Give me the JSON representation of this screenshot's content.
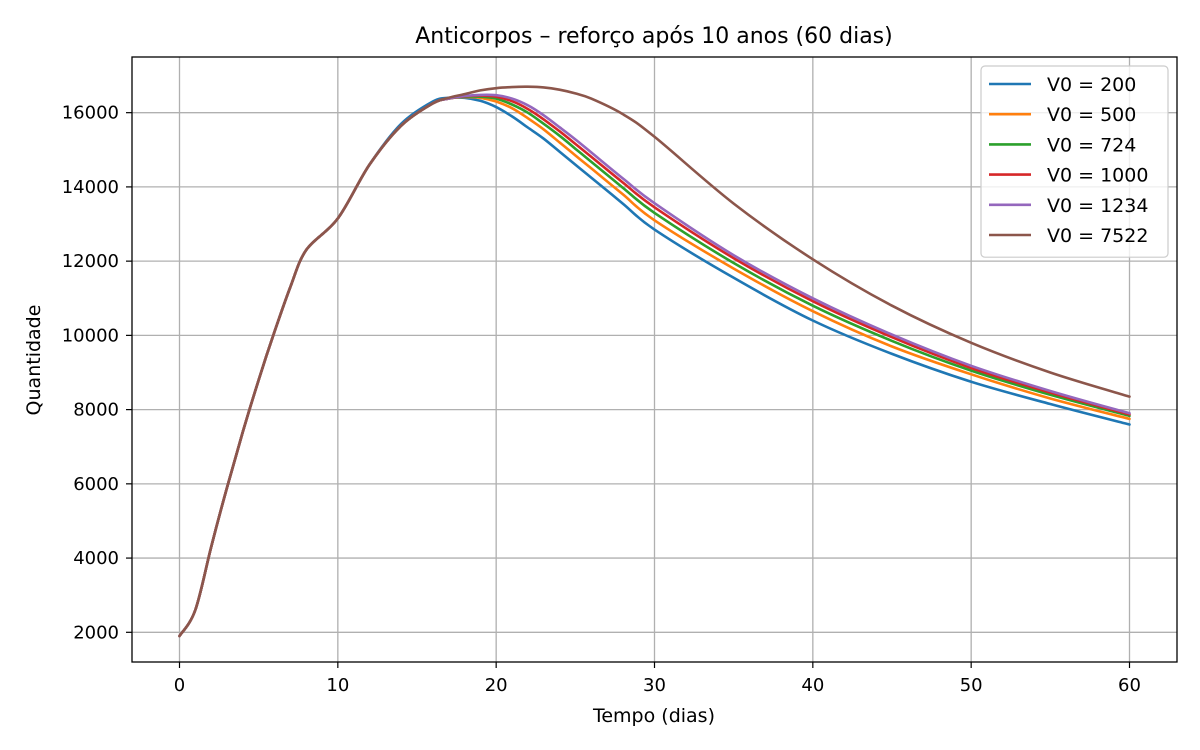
{
  "chart_data": {
    "type": "line",
    "title": "Anticorpos – reforço após 10 anos (60 dias)",
    "xlabel": "Tempo (dias)",
    "ylabel": "Quantidade",
    "xlim": [
      -3,
      63
    ],
    "ylim": [
      1200,
      17500
    ],
    "xticks": [
      0,
      10,
      20,
      30,
      40,
      50,
      60
    ],
    "yticks": [
      2000,
      4000,
      6000,
      8000,
      10000,
      12000,
      14000,
      16000
    ],
    "grid": true,
    "legend_position": "top-right",
    "x": [
      0,
      1,
      2,
      3,
      4,
      5,
      6,
      7,
      8,
      10,
      12,
      14,
      16,
      17,
      18,
      19,
      20,
      21,
      22,
      23,
      24,
      25,
      26,
      28,
      30,
      35,
      40,
      45,
      50,
      55,
      60
    ],
    "series": [
      {
        "name": "V0 = 200",
        "color": "#1f77b4",
        "values": [
          1900,
          2600,
          4300,
          5900,
          7400,
          8800,
          10100,
          11300,
          12300,
          13150,
          14600,
          15700,
          16300,
          16400,
          16400,
          16320,
          16150,
          15900,
          15600,
          15300,
          14950,
          14600,
          14250,
          13550,
          12850,
          11550,
          10400,
          9500,
          8750,
          8150,
          7600
        ]
      },
      {
        "name": "V0 = 500",
        "color": "#ff7f0e",
        "values": [
          1900,
          2600,
          4300,
          5900,
          7400,
          8800,
          10100,
          11300,
          12300,
          13150,
          14600,
          15650,
          16250,
          16380,
          16420,
          16400,
          16300,
          16120,
          15850,
          15550,
          15200,
          14850,
          14500,
          13800,
          13100,
          11800,
          10650,
          9700,
          8950,
          8300,
          7750
        ]
      },
      {
        "name": "V0 = 724",
        "color": "#2ca02c",
        "values": [
          1900,
          2600,
          4300,
          5900,
          7400,
          8800,
          10100,
          11300,
          12300,
          13150,
          14600,
          15650,
          16250,
          16380,
          16430,
          16430,
          16380,
          16220,
          16000,
          15700,
          15380,
          15030,
          14680,
          13980,
          13300,
          11950,
          10800,
          9850,
          9050,
          8400,
          7830
        ]
      },
      {
        "name": "V0 = 1000",
        "color": "#d62728",
        "values": [
          1900,
          2600,
          4300,
          5900,
          7400,
          8800,
          10100,
          11300,
          12300,
          13150,
          14600,
          15650,
          16250,
          16380,
          16440,
          16460,
          16430,
          16310,
          16100,
          15820,
          15500,
          15160,
          14810,
          14120,
          13450,
          12080,
          10920,
          9950,
          9120,
          8460,
          7870
        ]
      },
      {
        "name": "V0 = 1234",
        "color": "#9467bd",
        "values": [
          1900,
          2600,
          4300,
          5900,
          7400,
          8800,
          10100,
          11300,
          12300,
          13150,
          14600,
          15650,
          16250,
          16380,
          16450,
          16480,
          16470,
          16380,
          16200,
          15930,
          15610,
          15280,
          14930,
          14230,
          13560,
          12160,
          11000,
          10020,
          9180,
          8500,
          7900
        ]
      },
      {
        "name": "V0 = 7522",
        "color": "#8c564b",
        "values": [
          1900,
          2600,
          4300,
          5900,
          7400,
          8800,
          10100,
          11300,
          12300,
          13150,
          14600,
          15650,
          16250,
          16400,
          16500,
          16600,
          16660,
          16690,
          16700,
          16680,
          16620,
          16520,
          16380,
          15960,
          15350,
          13550,
          12050,
          10800,
          9800,
          9000,
          8350
        ]
      }
    ]
  }
}
